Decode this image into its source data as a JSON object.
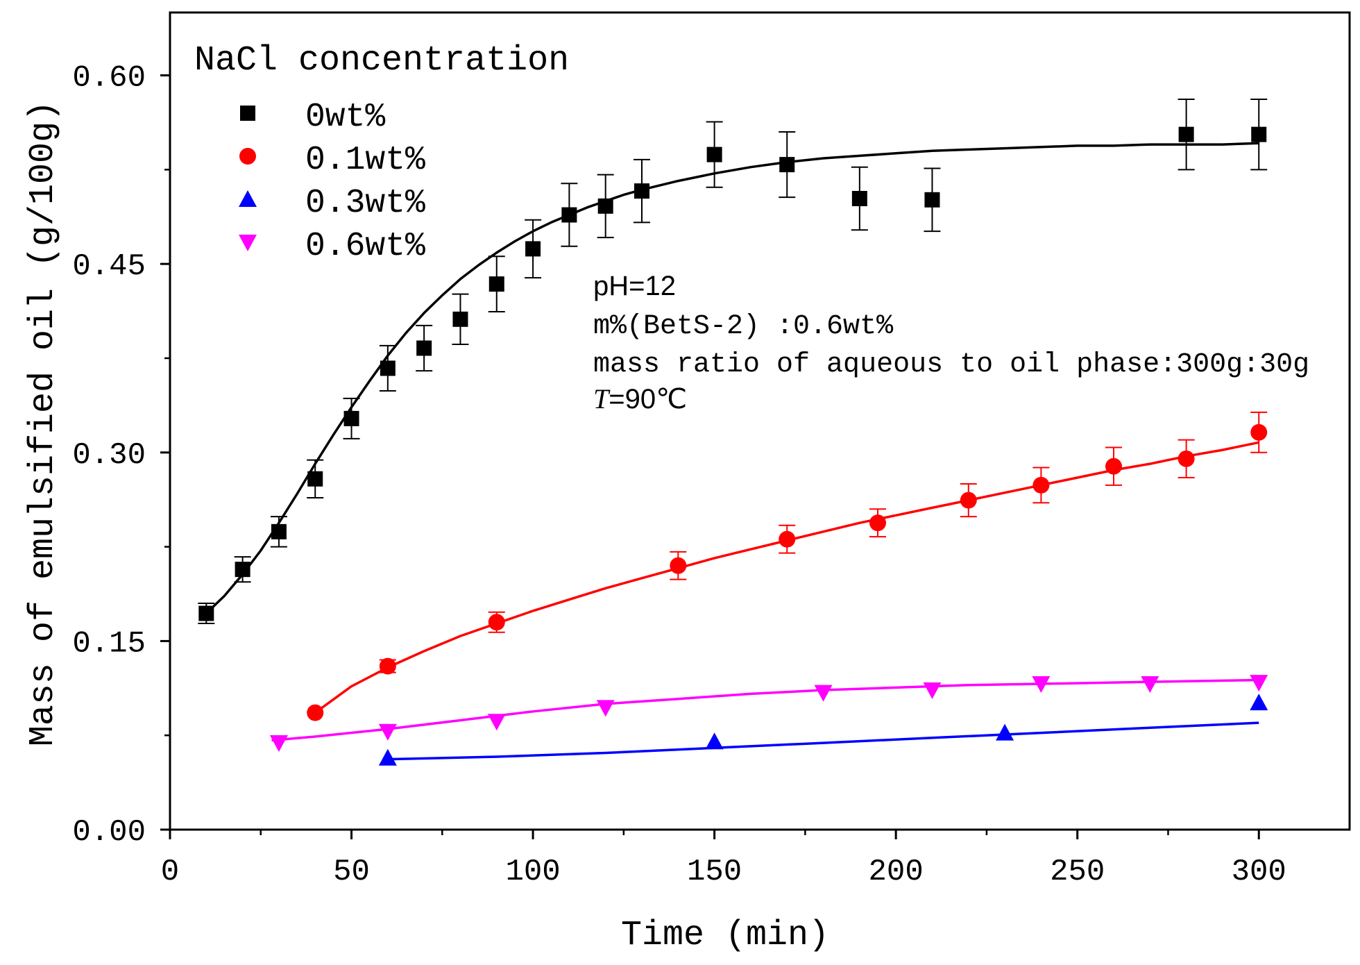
{
  "chart_data": {
    "type": "scatter",
    "xlabel": "Time (min)",
    "ylabel": "Mass of emulsified oil (g/100g)",
    "xlim": [
      0,
      325
    ],
    "ylim": [
      0,
      0.65
    ],
    "x_ticks": [
      0,
      50,
      100,
      150,
      200,
      250,
      300
    ],
    "x_tick_labels": [
      "0",
      "50",
      "100",
      "150",
      "200",
      "250",
      "300"
    ],
    "y_ticks": [
      0,
      0.15,
      0.3,
      0.45,
      0.6
    ],
    "y_tick_labels": [
      "0.00",
      "0.15",
      "0.30",
      "0.45",
      "0.60"
    ],
    "legend_title": "NaCl concentration",
    "legend_position": "top-left",
    "annotations": [
      "pH=12",
      "m%(BetS-2) :0.6wt%",
      "mass ratio of aqueous to oil phase:300g:30g"
    ],
    "temperature_annotation": {
      "symbol": "T",
      "value": "=90℃"
    },
    "series": [
      {
        "name": "0wt%",
        "color": "#000000",
        "marker": "square",
        "x": [
          10,
          20,
          30,
          40,
          50,
          60,
          70,
          80,
          90,
          100,
          110,
          120,
          130,
          150,
          170,
          190,
          210,
          280,
          300
        ],
        "y": [
          0.172,
          0.207,
          0.237,
          0.279,
          0.327,
          0.367,
          0.383,
          0.406,
          0.434,
          0.462,
          0.489,
          0.496,
          0.508,
          0.537,
          0.529,
          0.502,
          0.501,
          0.553,
          0.553
        ],
        "err": [
          0.008,
          0.01,
          0.012,
          0.015,
          0.016,
          0.018,
          0.018,
          0.02,
          0.022,
          0.023,
          0.025,
          0.025,
          0.025,
          0.026,
          0.026,
          0.025,
          0.025,
          0.028,
          0.028
        ],
        "fit_x": [
          10,
          15,
          20,
          25,
          30,
          35,
          40,
          45,
          50,
          55,
          60,
          65,
          70,
          75,
          80,
          85,
          90,
          95,
          100,
          105,
          110,
          115,
          120,
          125,
          130,
          140,
          150,
          160,
          170,
          180,
          190,
          200,
          210,
          220,
          230,
          240,
          250,
          260,
          270,
          280,
          290,
          300
        ],
        "fit_y": [
          0.172,
          0.186,
          0.203,
          0.222,
          0.244,
          0.267,
          0.291,
          0.314,
          0.336,
          0.357,
          0.377,
          0.395,
          0.411,
          0.425,
          0.438,
          0.449,
          0.459,
          0.468,
          0.476,
          0.483,
          0.489,
          0.495,
          0.5,
          0.505,
          0.509,
          0.516,
          0.522,
          0.527,
          0.531,
          0.534,
          0.536,
          0.538,
          0.54,
          0.541,
          0.542,
          0.543,
          0.544,
          0.544,
          0.545,
          0.545,
          0.545,
          0.546
        ]
      },
      {
        "name": "0.1wt%",
        "color": "#ff0000",
        "marker": "circle",
        "x": [
          40,
          60,
          90,
          140,
          170,
          195,
          220,
          240,
          260,
          280,
          300
        ],
        "y": [
          0.093,
          0.13,
          0.165,
          0.21,
          0.231,
          0.244,
          0.262,
          0.274,
          0.289,
          0.295,
          0.316
        ],
        "err": [
          0.0,
          0.005,
          0.008,
          0.011,
          0.011,
          0.011,
          0.013,
          0.014,
          0.015,
          0.015,
          0.016
        ],
        "fit_x": [
          40,
          50,
          60,
          70,
          80,
          90,
          100,
          110,
          120,
          130,
          140,
          150,
          160,
          170,
          180,
          190,
          200,
          210,
          220,
          230,
          240,
          250,
          260,
          270,
          280,
          290,
          300
        ],
        "fit_y": [
          0.093,
          0.114,
          0.129,
          0.142,
          0.154,
          0.164,
          0.174,
          0.183,
          0.192,
          0.2,
          0.208,
          0.216,
          0.223,
          0.23,
          0.237,
          0.244,
          0.25,
          0.256,
          0.262,
          0.268,
          0.274,
          0.28,
          0.286,
          0.291,
          0.297,
          0.302,
          0.308
        ]
      },
      {
        "name": "0.3wt%",
        "color": "#0000ff",
        "marker": "triangle-up",
        "x": [
          60,
          150,
          230,
          300
        ],
        "y": [
          0.057,
          0.07,
          0.077,
          0.101
        ],
        "err": [
          0,
          0,
          0,
          0
        ],
        "fit_x": [
          60,
          90,
          120,
          150,
          180,
          210,
          240,
          270,
          300
        ],
        "fit_y": [
          0.056,
          0.058,
          0.061,
          0.065,
          0.069,
          0.073,
          0.077,
          0.081,
          0.085
        ]
      },
      {
        "name": "0.6wt%",
        "color": "#ff00ff",
        "marker": "triangle-down",
        "x": [
          30,
          60,
          90,
          120,
          180,
          210,
          240,
          270,
          300
        ],
        "y": [
          0.069,
          0.078,
          0.086,
          0.097,
          0.109,
          0.111,
          0.116,
          0.116,
          0.117
        ],
        "err": [
          0,
          0,
          0,
          0,
          0,
          0,
          0,
          0,
          0
        ],
        "fit_x": [
          28,
          40,
          60,
          80,
          100,
          120,
          140,
          160,
          180,
          200,
          220,
          240,
          260,
          280,
          300
        ],
        "fit_y": [
          0.071,
          0.074,
          0.08,
          0.087,
          0.094,
          0.1,
          0.104,
          0.108,
          0.111,
          0.113,
          0.115,
          0.116,
          0.117,
          0.118,
          0.119
        ]
      }
    ]
  }
}
